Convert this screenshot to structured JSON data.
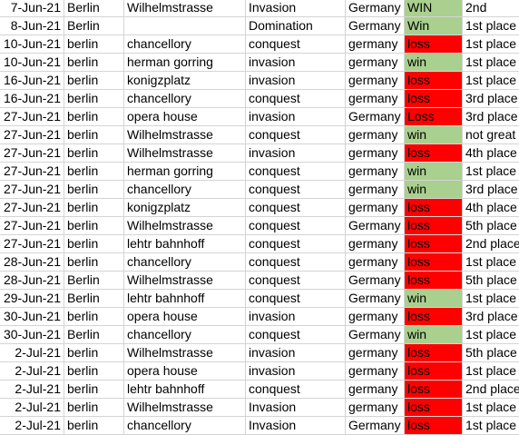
{
  "colors": {
    "win": "#a9d08e",
    "loss": "#ff0000",
    "grid": "#d4d4d4"
  },
  "rows": [
    [
      "7-Jun-21",
      "Berlin",
      "Wilhelmstrasse",
      "Invasion",
      "Germany",
      "WIN",
      "2nd"
    ],
    [
      "8-Jun-21",
      "Berlin",
      "",
      "Domination",
      "Germany",
      "Win",
      "1st place"
    ],
    [
      "10-Jun-21",
      "berlin",
      "chancellory",
      "conquest",
      "germany",
      "loss",
      "1st place"
    ],
    [
      "10-Jun-21",
      "berlin",
      "herman gorring",
      "invasion",
      "germany",
      "win",
      "1st place"
    ],
    [
      "16-Jun-21",
      "berlin",
      "konigzplatz",
      "invasion",
      "germany",
      "loss",
      "1st place"
    ],
    [
      "16-Jun-21",
      "berlin",
      "chancellory",
      "conquest",
      "germany",
      "loss",
      "3rd place"
    ],
    [
      "27-Jun-21",
      "berlin",
      "opera house",
      "invasion",
      "Germany",
      "Loss",
      "3rd place"
    ],
    [
      "27-Jun-21",
      "berlin",
      "Wilhelmstrasse",
      "conquest",
      "germany",
      "win",
      "not great"
    ],
    [
      "27-Jun-21",
      "berlin",
      "Wilhelmstrasse",
      "invasion",
      "germany",
      "loss",
      "4th place"
    ],
    [
      "27-Jun-21",
      "berlin",
      "herman gorring",
      "conquest",
      "germany",
      "win",
      "1st place"
    ],
    [
      "27-Jun-21",
      "berlin",
      "chancellory",
      "conquest",
      "germany",
      "win",
      "3rd place"
    ],
    [
      "27-Jun-21",
      "berlin",
      "konigzplatz",
      "conquest",
      "germany",
      "loss",
      "4th place"
    ],
    [
      "27-Jun-21",
      "berlin",
      "Wilhelmstrasse",
      "conquest",
      "Germany",
      "loss",
      "5th place"
    ],
    [
      "27-Jun-21",
      "berlin",
      "lehtr bahnhoff",
      "conquest",
      "germany",
      "loss",
      "2nd place"
    ],
    [
      "28-Jun-21",
      "berlin",
      "chancellory",
      "conquest",
      "germany",
      "loss",
      "1st place"
    ],
    [
      "28-Jun-21",
      "Berlin",
      "Wilhelmstrasse",
      "conquest",
      "Germany",
      "loss",
      "5th place"
    ],
    [
      "29-Jun-21",
      "Berlin",
      "lehtr bahnhoff",
      "conquest",
      "Germany",
      "win",
      "1st place"
    ],
    [
      "30-Jun-21",
      "berlin",
      "opera house",
      "invasion",
      "germany",
      "loss",
      "3rd place"
    ],
    [
      "30-Jun-21",
      "Berlin",
      "chancellory",
      "conquest",
      "Germany",
      "win",
      "1st place"
    ],
    [
      "2-Jul-21",
      "berlin",
      "Wilhelmstrasse",
      "invasion",
      "germany",
      "loss",
      "5th place"
    ],
    [
      "2-Jul-21",
      "berlin",
      "opera house",
      "invasion",
      "germany",
      "loss",
      "1st place"
    ],
    [
      "2-Jul-21",
      "berlin",
      "lehtr bahnhoff",
      "conquest",
      "germany",
      "loss",
      "2nd place"
    ],
    [
      "2-Jul-21",
      "berlin",
      "Wilhelmstrasse",
      "Invasion",
      "germany",
      "loss",
      "1st place"
    ],
    [
      "2-Jul-21",
      "berlin",
      "chancellory",
      "Invasion",
      "Germany",
      "loss",
      "1st place"
    ]
  ]
}
